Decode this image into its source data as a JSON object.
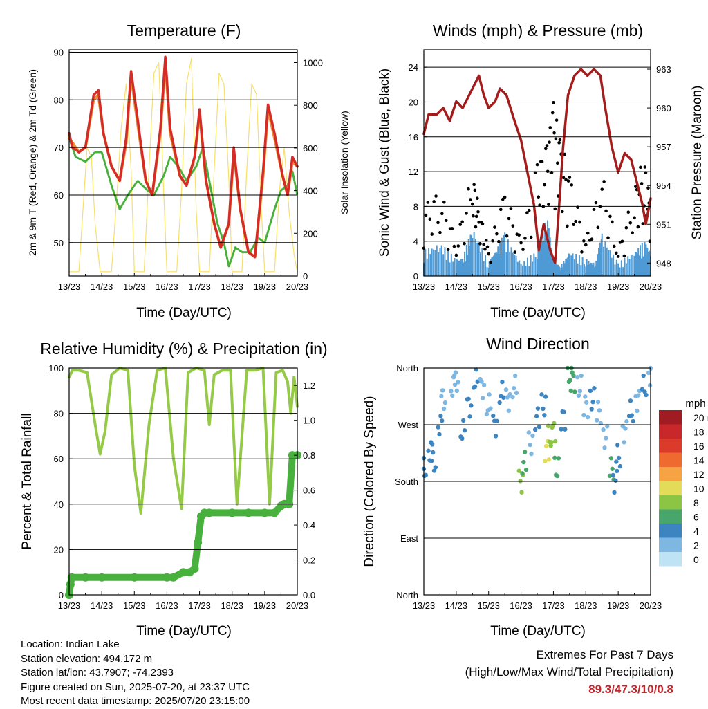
{
  "panels": {
    "temperature": {
      "title": "Temperature (F)",
      "ylabel": "2m & 9m T (Red, Orange) & 2m Td (Green)",
      "y2label": "Solar Insolation (Yellow)",
      "xlabel": "Time (Day/UTC)"
    },
    "winds": {
      "title": "Winds (mph) & Pressure (mb)",
      "ylabel": "Sonic Wind & Gust (Blue, Black)",
      "y2label": "Station Pressure (Maroon)",
      "xlabel": "Time (Day/UTC)"
    },
    "humidity": {
      "title": "Relative Humidity (%) & Precipitation (in)",
      "ylabel": "Percent & Total Rainfall",
      "xlabel": "Time (Day/UTC)"
    },
    "direction": {
      "title": "Wind Direction",
      "ylabel": "Direction (Colored By Speed)",
      "xlabel": "Time (Day/UTC)"
    }
  },
  "legend": {
    "unit": "mph",
    "labels": [
      "20+",
      "18",
      "16",
      "14",
      "12",
      "10",
      "8",
      "6",
      "4",
      "2",
      "0"
    ],
    "colors": [
      "#a01c22",
      "#c8282a",
      "#dc3b2c",
      "#ef6a2f",
      "#f6a343",
      "#e3dc58",
      "#8cc444",
      "#48a66a",
      "#3d85c0",
      "#7eb8e2",
      "#bde3f5"
    ]
  },
  "info": {
    "location": "Location: Indian Lake",
    "elevation": "Station elevation: 494.172 m",
    "latlon": "Station lat/lon: 43.7907; -74.2393",
    "created": "Figure created on Sun, 2025-07-20, at 23:37 UTC",
    "latest": "Most recent data timestamp: 2025/07/20 23:15:00"
  },
  "extremes": {
    "line1": "Extremes For Past 7 Days",
    "line2": "(High/Low/Max Wind/Total Precipitation)",
    "values": "89.3/47.3/10/0.8"
  },
  "colors": {
    "temp_2m": "#d42c27",
    "temp_9m": "#f08d30",
    "dewpoint": "#48b03c",
    "solar": "#f7e06a",
    "gust": "#000000",
    "wind": "#4f9ad4",
    "pressure": "#a31d1d",
    "rh": "#95c948",
    "precip": "#48b03c"
  },
  "chart_data": [
    {
      "type": "line",
      "title": "Temperature (F)",
      "x_ticks": [
        "13/23",
        "14/23",
        "15/23",
        "16/23",
        "17/23",
        "18/23",
        "19/23",
        "20/23"
      ],
      "xlim": [
        0,
        7
      ],
      "ylim": [
        43,
        90.5
      ],
      "y_ticks": [
        50,
        60,
        70,
        80,
        90
      ],
      "y2lim": [
        0,
        1060
      ],
      "y2_ticks": [
        0,
        200,
        400,
        600,
        800,
        1000
      ],
      "series": [
        {
          "name": "2m T (Red)",
          "axis": "left",
          "x": [
            0,
            0.1,
            0.3,
            0.5,
            0.75,
            0.9,
            1.05,
            1.3,
            1.55,
            1.75,
            1.9,
            2.1,
            2.35,
            2.55,
            2.8,
            2.95,
            3.1,
            3.4,
            3.6,
            3.85,
            4.0,
            4.2,
            4.45,
            4.65,
            4.9,
            5.05,
            5.25,
            5.5,
            5.7,
            5.95,
            6.1,
            6.3,
            6.55,
            6.7,
            6.85,
            7.0
          ],
          "y": [
            73,
            70,
            69,
            70,
            81,
            82,
            73,
            66,
            63,
            72,
            86,
            76,
            63,
            60,
            74,
            89,
            74,
            64,
            62,
            68,
            78,
            63,
            54,
            49,
            54,
            70,
            57,
            48,
            47,
            65,
            79,
            73,
            64,
            60,
            68,
            66
          ]
        },
        {
          "name": "9m T (Orange)",
          "axis": "left",
          "x": [
            0,
            0.3,
            0.5,
            0.75,
            0.9,
            1.05,
            1.3,
            1.55,
            1.75,
            1.9,
            2.1,
            2.35,
            2.55,
            2.8,
            2.95,
            3.1,
            3.4,
            3.6,
            3.85,
            4.0,
            4.2,
            4.45,
            4.65,
            4.9,
            5.05,
            5.25,
            5.5,
            5.7,
            5.95,
            6.1,
            6.3,
            6.55,
            6.7,
            6.85,
            7.0
          ],
          "y": [
            72,
            69,
            70,
            80,
            81,
            73,
            66,
            63,
            71,
            85,
            75,
            63,
            60,
            73,
            88,
            73,
            64,
            62,
            68,
            77,
            63,
            54,
            49,
            54,
            69,
            57,
            48,
            47,
            64,
            78,
            72,
            64,
            60,
            67,
            66
          ]
        },
        {
          "name": "2m Td (Green)",
          "axis": "left",
          "x": [
            0,
            0.2,
            0.5,
            0.8,
            1.0,
            1.3,
            1.55,
            1.8,
            2.1,
            2.4,
            2.6,
            2.9,
            3.1,
            3.35,
            3.6,
            3.9,
            4.1,
            4.3,
            4.55,
            4.75,
            4.9,
            5.1,
            5.3,
            5.55,
            5.8,
            6.0,
            6.3,
            6.5,
            6.7,
            6.85,
            7.0
          ],
          "y": [
            72,
            68,
            67,
            69,
            69,
            62,
            57,
            60,
            63,
            61,
            60,
            64,
            68,
            66,
            63,
            66,
            70,
            63,
            54,
            50,
            45,
            49,
            48,
            48,
            51,
            50,
            57,
            61,
            62,
            65,
            60
          ]
        },
        {
          "name": "Solar Insolation (Yellow)",
          "axis": "right",
          "x": [
            0,
            0.3,
            0.42,
            0.55,
            0.68,
            0.8,
            0.95,
            1.3,
            1.45,
            1.6,
            1.75,
            1.9,
            2.0,
            2.3,
            2.45,
            2.6,
            2.75,
            2.9,
            3.0,
            3.3,
            3.45,
            3.6,
            3.75,
            3.9,
            4.0,
            4.3,
            4.45,
            4.6,
            4.75,
            4.9,
            5.0,
            5.3,
            5.45,
            5.6,
            5.75,
            5.9,
            6.0,
            6.3,
            6.45,
            6.6,
            6.75,
            6.9,
            7.0
          ],
          "y": [
            20,
            20,
            300,
            600,
            560,
            240,
            20,
            20,
            350,
            700,
            900,
            500,
            20,
            20,
            500,
            950,
            1000,
            400,
            20,
            20,
            400,
            900,
            1020,
            300,
            20,
            20,
            500,
            950,
            900,
            450,
            20,
            20,
            500,
            900,
            850,
            300,
            20,
            20,
            400,
            600,
            300,
            100,
            20
          ]
        }
      ]
    },
    {
      "type": "scatter",
      "title": "Winds (mph) & Pressure (mb)",
      "x_ticks": [
        "13/23",
        "14/23",
        "15/23",
        "16/23",
        "17/23",
        "18/23",
        "19/23",
        "20/23"
      ],
      "xlim": [
        0,
        7
      ],
      "ylim": [
        0,
        26
      ],
      "y_ticks": [
        0,
        4,
        8,
        12,
        16,
        20,
        24
      ],
      "y2lim": [
        947,
        964.5
      ],
      "y2_ticks": [
        948,
        951,
        954,
        957,
        960,
        963
      ],
      "series": [
        {
          "name": "Station Pressure (Maroon)",
          "axis": "right",
          "x": [
            0,
            0.15,
            0.4,
            0.6,
            0.8,
            1.0,
            1.2,
            1.5,
            1.7,
            1.85,
            2.0,
            2.2,
            2.35,
            2.55,
            2.8,
            3.0,
            3.2,
            3.4,
            3.55,
            3.7,
            3.9,
            4.05,
            4.15,
            4.3,
            4.45,
            4.65,
            4.85,
            5.05,
            5.25,
            5.45,
            5.6,
            5.8,
            6.0,
            6.2,
            6.4,
            6.6,
            6.75,
            6.85,
            7.0
          ],
          "y": [
            958,
            959.5,
            959.5,
            960,
            959,
            960.5,
            960,
            961.5,
            962.5,
            961,
            960,
            960.5,
            961.5,
            961,
            959,
            957.5,
            955,
            952.5,
            949,
            951,
            949,
            948,
            951.5,
            957,
            961,
            962.5,
            963,
            962.5,
            963,
            962.5,
            960,
            957,
            955,
            956.5,
            956,
            954,
            952.5,
            951,
            953
          ]
        },
        {
          "name": "Sonic Wind (Blue)",
          "axis": "left",
          "x": [
            0,
            0.5,
            1.0,
            1.2,
            1.5,
            2.0,
            2.2,
            2.5,
            3.0,
            3.5,
            3.8,
            4.0,
            4.2,
            4.5,
            5.0,
            5.3,
            5.5,
            6.0,
            6.5,
            6.8,
            7.0
          ],
          "y": [
            3,
            4,
            2,
            2,
            6,
            1.5,
            3,
            5,
            1.5,
            3,
            7,
            2,
            1,
            3,
            2,
            1.5,
            5,
            1.5,
            3,
            4,
            3
          ]
        },
        {
          "name": "Gust (Black)",
          "axis": "left",
          "x": [
            0,
            0.5,
            1.0,
            1.5,
            1.7,
            2.0,
            2.5,
            3.0,
            3.5,
            3.8,
            4.0,
            4.2,
            4.5,
            5.0,
            5.5,
            6.0,
            6.5,
            6.8,
            7.0
          ],
          "y": [
            8,
            10,
            4,
            12,
            8,
            3,
            10,
            4,
            13,
            15,
            20,
            16,
            12,
            4,
            12,
            3,
            10,
            14,
            8
          ]
        }
      ]
    },
    {
      "type": "line",
      "title": "Relative Humidity (%) & Precipitation (in)",
      "x_ticks": [
        "13/23",
        "14/23",
        "15/23",
        "16/23",
        "17/23",
        "18/23",
        "19/23",
        "20/23"
      ],
      "xlim": [
        0,
        7
      ],
      "ylim": [
        0,
        100
      ],
      "y_ticks": [
        0,
        20,
        40,
        60,
        80,
        100
      ],
      "y2lim": [
        0,
        1.3
      ],
      "y2_ticks": [
        0.0,
        0.2,
        0.4,
        0.6,
        0.8,
        1.0,
        1.2
      ],
      "series": [
        {
          "name": "Relative Humidity",
          "axis": "left",
          "x": [
            0,
            0.1,
            0.3,
            0.55,
            0.8,
            0.95,
            1.1,
            1.3,
            1.55,
            1.8,
            2.0,
            2.2,
            2.45,
            2.7,
            2.95,
            3.2,
            3.45,
            3.65,
            3.9,
            4.15,
            4.3,
            4.45,
            4.7,
            4.95,
            5.15,
            5.45,
            5.7,
            5.95,
            6.15,
            6.35,
            6.55,
            6.7,
            6.8,
            6.9,
            7.0
          ],
          "y": [
            96,
            99,
            99,
            98,
            75,
            62,
            72,
            97,
            100,
            99,
            57,
            36,
            75,
            99,
            100,
            60,
            38,
            98,
            100,
            99,
            75,
            97,
            99,
            99,
            40,
            99,
            99,
            100,
            40,
            98,
            99,
            94,
            80,
            96,
            83
          ]
        },
        {
          "name": "Total Rainfall",
          "axis": "right",
          "x": [
            0,
            0.04,
            0.08,
            0.5,
            1.0,
            2.0,
            3.0,
            3.2,
            3.5,
            3.7,
            3.85,
            3.95,
            4.05,
            4.15,
            4.3,
            5.0,
            5.5,
            6.0,
            6.3,
            6.5,
            6.6,
            6.75,
            6.85,
            7.0
          ],
          "y": [
            0.0,
            0.06,
            0.1,
            0.1,
            0.1,
            0.1,
            0.1,
            0.1,
            0.13,
            0.13,
            0.15,
            0.3,
            0.45,
            0.47,
            0.47,
            0.47,
            0.47,
            0.47,
            0.47,
            0.51,
            0.52,
            0.52,
            0.8,
            0.8
          ]
        }
      ]
    },
    {
      "type": "scatter",
      "title": "Wind Direction",
      "x_ticks": [
        "13/23",
        "14/23",
        "15/23",
        "16/23",
        "17/23",
        "18/23",
        "19/23",
        "20/23"
      ],
      "xlim": [
        0,
        7
      ],
      "y_ticks": [
        "North",
        "East",
        "South",
        "West",
        "North"
      ],
      "y_values": [
        0,
        90,
        180,
        270,
        360
      ],
      "ylim": [
        0,
        360
      ],
      "series": [
        {
          "name": "Direction",
          "x": [
            0.0,
            0.2,
            0.3,
            0.5,
            0.6,
            0.9,
            1.0,
            1.2,
            1.4,
            1.6,
            1.8,
            2.0,
            2.2,
            2.4,
            2.6,
            2.8,
            3.0,
            3.1,
            3.3,
            3.5,
            3.7,
            3.8,
            3.9,
            4.0,
            4.1,
            4.3,
            4.5,
            4.6,
            4.8,
            5.0,
            5.2,
            5.4,
            5.6,
            5.8,
            5.9,
            6.0,
            6.2,
            6.4,
            6.6,
            6.8,
            7.0
          ],
          "y": [
            200,
            230,
            210,
            270,
            310,
            330,
            340,
            260,
            300,
            340,
            330,
            300,
            270,
            320,
            310,
            330,
            180,
            210,
            240,
            280,
            300,
            230,
            250,
            260,
            200,
            280,
            350,
            340,
            330,
            300,
            310,
            290,
            250,
            200,
            180,
            220,
            260,
            290,
            310,
            330,
            350
          ],
          "speed": [
            3,
            3,
            4,
            3,
            2,
            1,
            2,
            4,
            3,
            4,
            2,
            1,
            3,
            4,
            2,
            1,
            7,
            5,
            2,
            3,
            4,
            9,
            8,
            7,
            6,
            3,
            6,
            5,
            2,
            1,
            3,
            2,
            1,
            5,
            4,
            3,
            2,
            4,
            1,
            3,
            2
          ]
        }
      ]
    }
  ]
}
